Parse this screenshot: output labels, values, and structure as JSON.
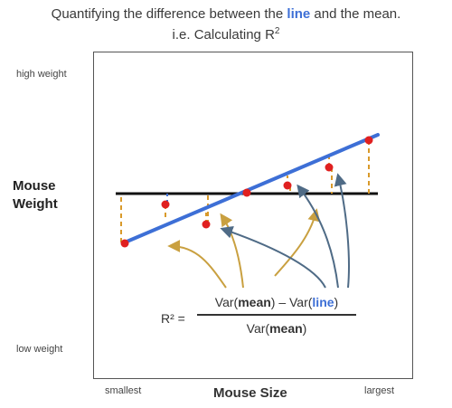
{
  "title": {
    "line1_before": "Quantifying the difference between the ",
    "line1_highlight": "line",
    "line1_after": " and the mean.",
    "line2_prefix": "i.e. Calculating R",
    "line2_superscript": "2"
  },
  "y_axis": {
    "top_label": "high weight",
    "bottom_label": "low weight",
    "main_label_line1": "Mouse",
    "main_label_line2": "Weight"
  },
  "x_axis": {
    "left_label": "smallest",
    "right_label": "largest",
    "main_label": "Mouse Size"
  },
  "formula": {
    "lhs": "R² =",
    "num_1": "Var(",
    "num_2": "mean",
    "num_3": ") – Var(",
    "num_4": "line",
    "num_5": ")",
    "den_1": "Var(",
    "den_2": "mean",
    "den_3": ")"
  },
  "colors": {
    "fit_line": "#3d6fd6",
    "mean_line": "#111111",
    "points": "#e02020",
    "residual_dashes": "#d99a2b",
    "arrows_gold": "#c9a040",
    "arrows_slate": "#4f6b86",
    "highlight_text": "#3d6fd6"
  }
}
